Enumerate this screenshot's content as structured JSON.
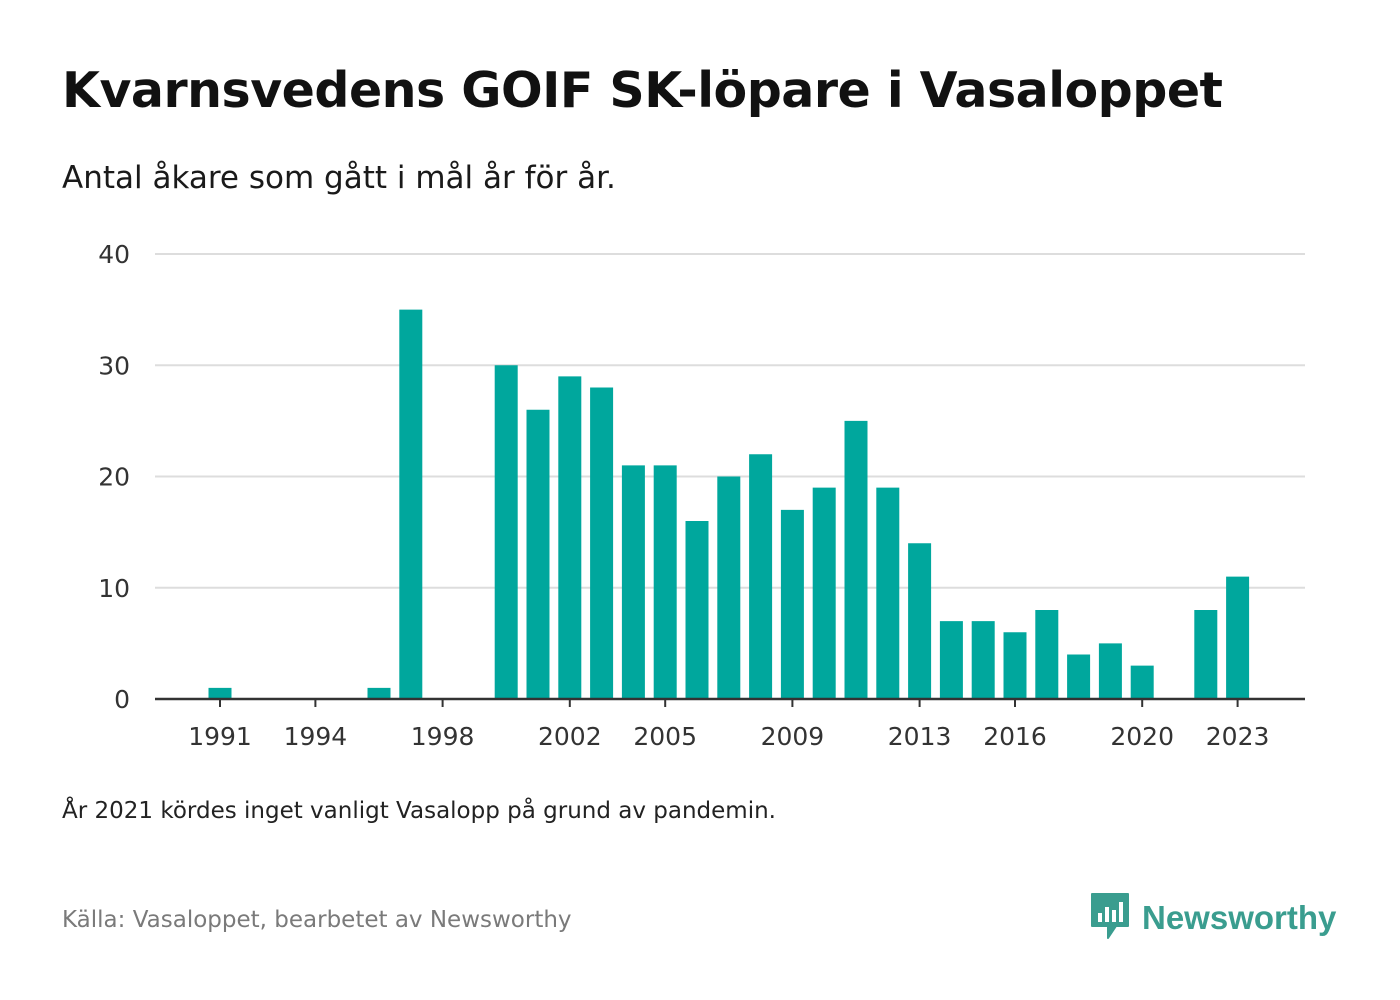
{
  "header": {
    "title": "Kvarnsvedens GOIF SK-löpare i Vasaloppet",
    "subtitle": "Antal åkare som gått i mål år för år."
  },
  "footer": {
    "note": "År 2021 kördes inget vanligt Vasalopp på grund av pandemin.",
    "source": "Källa: Vasaloppet, bearbetet av Newsworthy",
    "brand": "Newsworthy",
    "brand_icon": "newsworthy-logo-icon"
  },
  "colors": {
    "bar": "#00a79d",
    "grid": "#dddddd",
    "axis": "#333333",
    "brand": "#3a9d8f"
  },
  "chart_data": {
    "type": "bar",
    "categories": [
      1991,
      1992,
      1993,
      1994,
      1995,
      1996,
      1997,
      1998,
      1999,
      2000,
      2001,
      2002,
      2003,
      2004,
      2005,
      2006,
      2007,
      2008,
      2009,
      2010,
      2011,
      2012,
      2013,
      2014,
      2015,
      2016,
      2017,
      2018,
      2019,
      2020,
      2021,
      2022,
      2023
    ],
    "values": [
      1,
      0,
      0,
      0,
      0,
      1,
      35,
      0,
      0,
      30,
      26,
      29,
      28,
      21,
      21,
      16,
      20,
      22,
      17,
      19,
      25,
      19,
      14,
      7,
      7,
      6,
      8,
      4,
      5,
      3,
      0,
      8,
      11
    ],
    "x_tick_labels": [
      "1991",
      "1994",
      "1998",
      "2002",
      "2005",
      "2009",
      "2013",
      "2016",
      "2020",
      "2023"
    ],
    "y_ticks": [
      0,
      10,
      20,
      30,
      40
    ],
    "ylim": [
      0,
      40
    ],
    "grid": true,
    "legend": "none",
    "xlabel": "",
    "ylabel": ""
  }
}
